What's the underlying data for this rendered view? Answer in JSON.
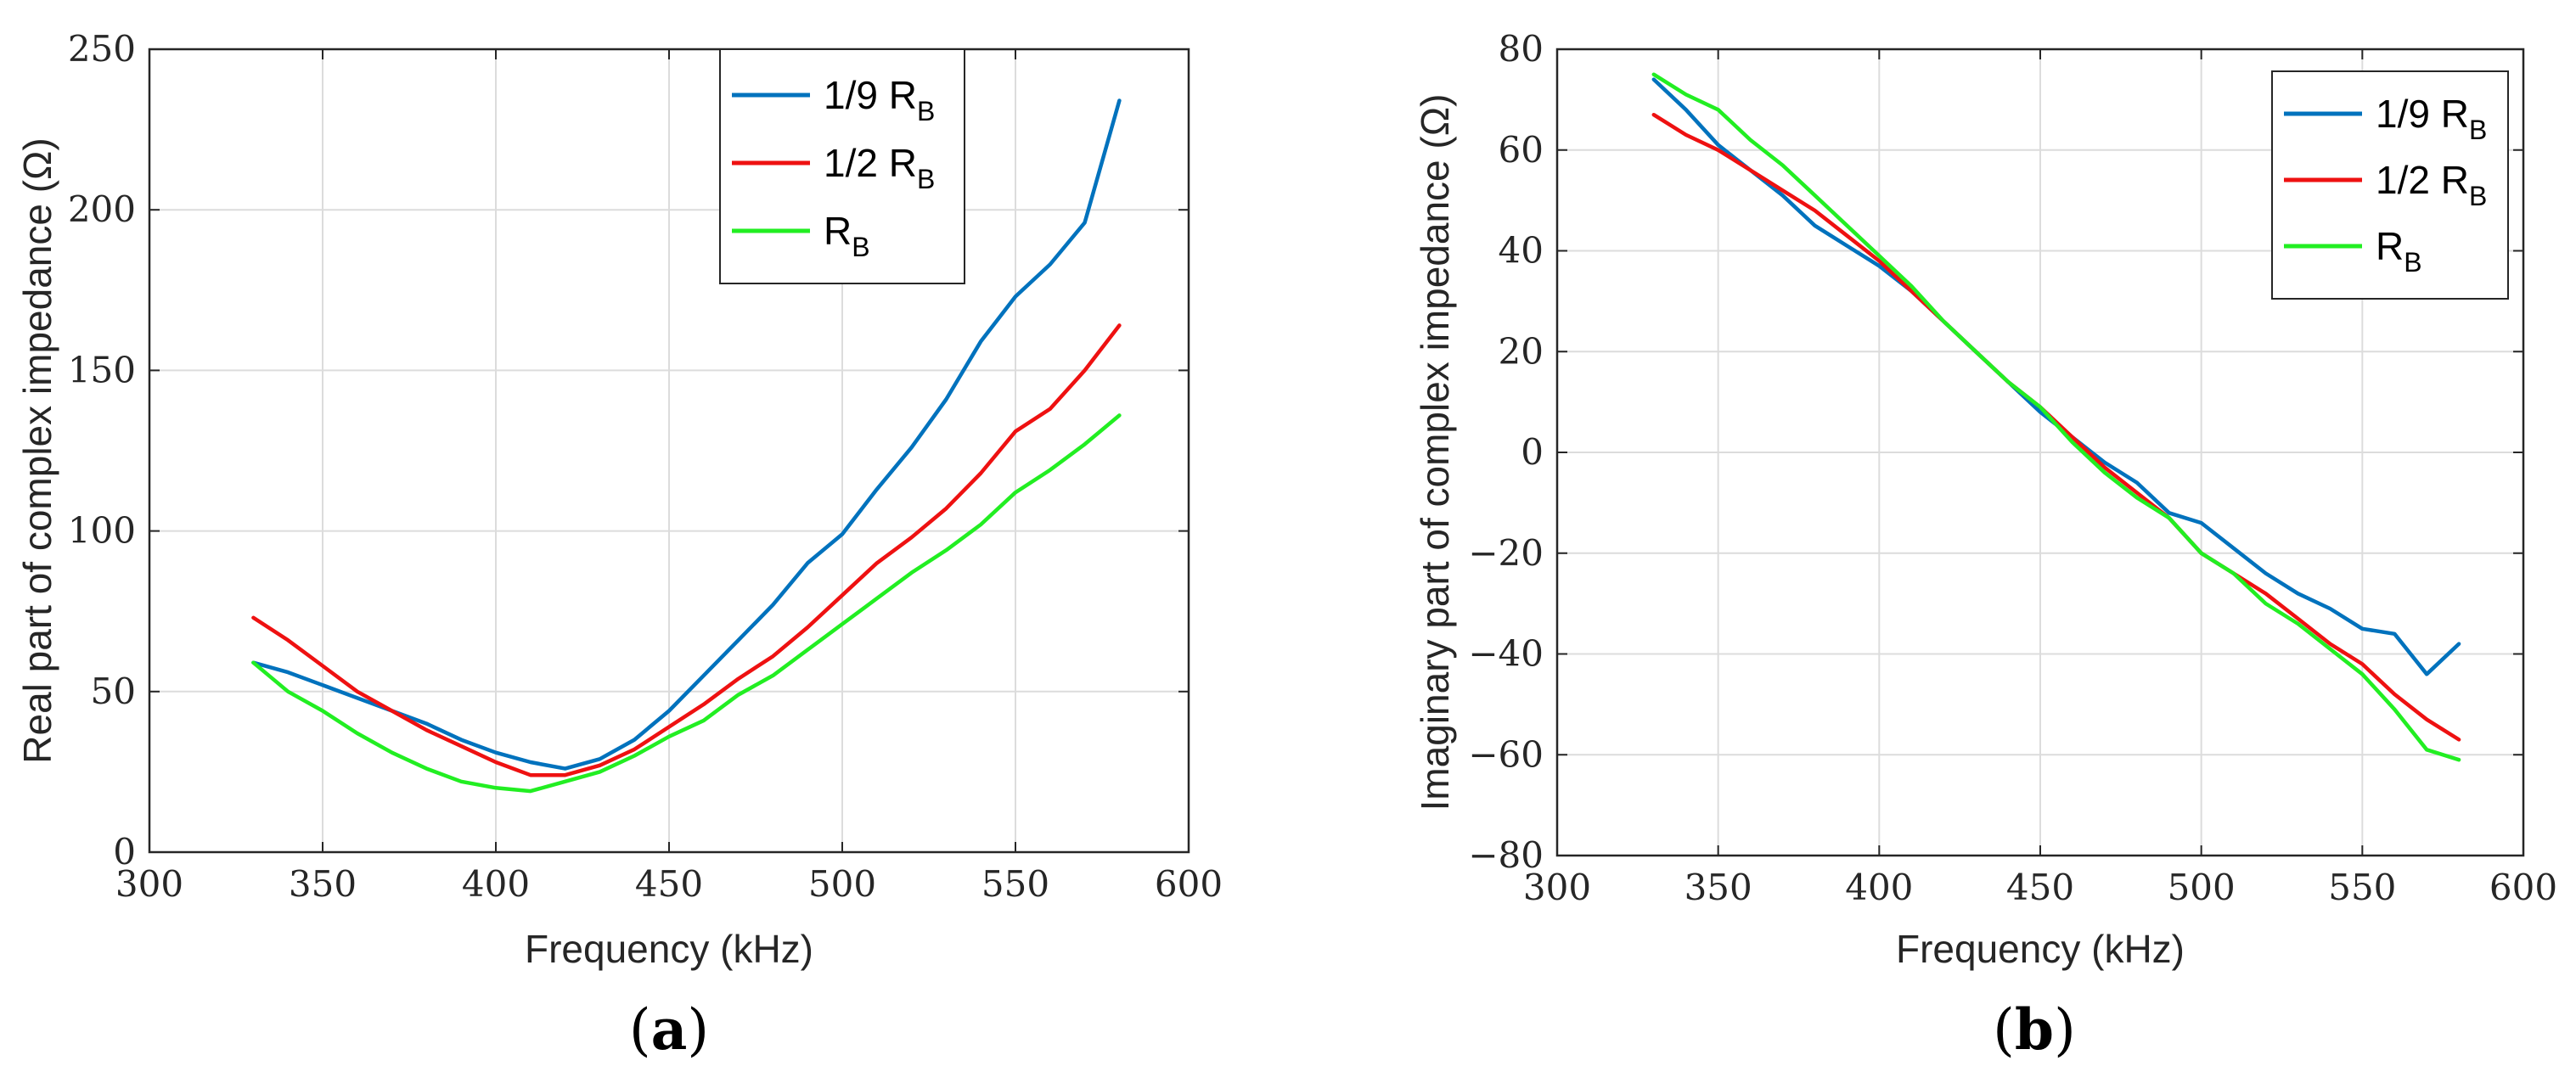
{
  "chart_data": [
    {
      "type": "line",
      "panel_label": "a",
      "xlabel": "Frequency (kHz)",
      "ylabel": "Real part of complex impedance (Ω)",
      "xlim": [
        300,
        600
      ],
      "ylim": [
        0,
        250
      ],
      "xticks": [
        "300",
        "350",
        "400",
        "450",
        "500",
        "550",
        "600"
      ],
      "yticks": [
        "0",
        "50",
        "100",
        "150",
        "200",
        "250"
      ],
      "grid": true,
      "legend_position": "top-right",
      "x": [
        330,
        340,
        350,
        360,
        370,
        380,
        390,
        400,
        410,
        420,
        430,
        440,
        450,
        460,
        470,
        480,
        490,
        500,
        510,
        520,
        530,
        540,
        550,
        560,
        570,
        580
      ],
      "series": [
        {
          "name": "1/9 R",
          "sub": "B",
          "color": "#0072BD",
          "values": [
            59,
            56,
            52,
            48,
            44,
            40,
            35,
            31,
            28,
            26,
            29,
            35,
            44,
            55,
            66,
            77,
            90,
            99,
            113,
            126,
            141,
            159,
            173,
            183,
            196,
            234
          ]
        },
        {
          "name": "1/2 R",
          "sub": "B",
          "color": "#EE1111",
          "values": [
            73,
            66,
            58,
            50,
            44,
            38,
            33,
            28,
            24,
            24,
            27,
            32,
            39,
            46,
            54,
            61,
            70,
            80,
            90,
            98,
            107,
            118,
            131,
            138,
            150,
            164
          ]
        },
        {
          "name": "R",
          "sub": "B",
          "color": "#22EE22",
          "values": [
            59,
            50,
            44,
            37,
            31,
            26,
            22,
            20,
            19,
            22,
            25,
            30,
            36,
            41,
            49,
            55,
            63,
            71,
            79,
            87,
            94,
            102,
            112,
            119,
            127,
            136
          ]
        }
      ]
    },
    {
      "type": "line",
      "panel_label": "b",
      "xlabel": "Frequency (kHz)",
      "ylabel": "Imaginary part of complex impedance (Ω)",
      "xlim": [
        300,
        600
      ],
      "ylim": [
        -80,
        80
      ],
      "xticks": [
        "300",
        "350",
        "400",
        "450",
        "500",
        "550",
        "600"
      ],
      "yticks": [
        "−80",
        "−60",
        "−40",
        "−20",
        "0",
        "20",
        "40",
        "60",
        "80"
      ],
      "grid": true,
      "legend_position": "top-right",
      "x": [
        330,
        340,
        350,
        360,
        370,
        380,
        390,
        400,
        410,
        420,
        430,
        440,
        450,
        460,
        470,
        480,
        490,
        500,
        510,
        520,
        530,
        540,
        550,
        560,
        570,
        580
      ],
      "series": [
        {
          "name": "1/9 R",
          "sub": "B",
          "color": "#0072BD",
          "values": [
            74,
            68,
            61,
            56,
            51,
            45,
            41,
            37,
            32,
            26,
            20,
            14,
            8,
            3,
            -2,
            -6,
            -12,
            -14,
            -19,
            -24,
            -28,
            -31,
            -35,
            -36,
            -44,
            -38
          ]
        },
        {
          "name": "1/2 R",
          "sub": "B",
          "color": "#EE1111",
          "values": [
            67,
            63,
            60,
            56,
            52,
            48,
            43,
            38,
            32,
            26,
            20,
            14,
            9,
            3,
            -3,
            -8,
            -13,
            -20,
            -24,
            -28,
            -33,
            -38,
            -42,
            -48,
            -53,
            -57
          ]
        },
        {
          "name": "R",
          "sub": "B",
          "color": "#22EE22",
          "values": [
            75,
            71,
            68,
            62,
            57,
            51,
            45,
            39,
            33,
            26,
            20,
            14,
            9,
            2,
            -4,
            -9,
            -13,
            -20,
            -24,
            -30,
            -34,
            -39,
            -44,
            -51,
            -59,
            -61
          ]
        }
      ]
    }
  ]
}
